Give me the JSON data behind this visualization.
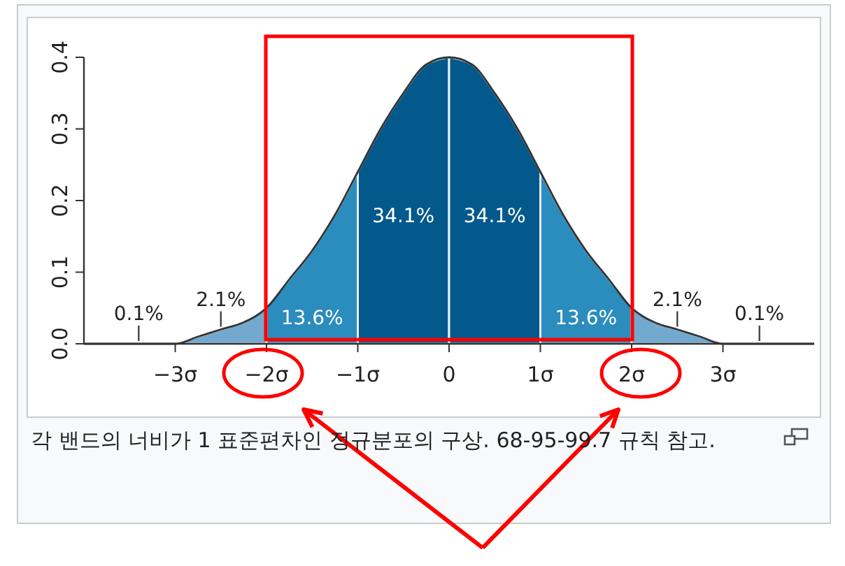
{
  "chart_data": {
    "type": "area",
    "xlim": [
      -4,
      4
    ],
    "ylim": [
      0,
      0.4
    ],
    "xticks": [
      {
        "value": -3,
        "label": "−3σ"
      },
      {
        "value": -2,
        "label": "−2σ"
      },
      {
        "value": -1,
        "label": "−1σ"
      },
      {
        "value": 0,
        "label": "0"
      },
      {
        "value": 1,
        "label": "1σ"
      },
      {
        "value": 2,
        "label": "2σ"
      },
      {
        "value": 3,
        "label": "3σ"
      }
    ],
    "yticks": [
      {
        "value": 0,
        "label": "0.0"
      },
      0.1,
      0.2,
      0.3,
      0.4
    ],
    "series": [
      {
        "color": "#74a9cf",
        "x": [
          -3,
          -2.75,
          -2.5,
          -2.25,
          -2
        ],
        "values": [
          0,
          0.01,
          0.02,
          0.03,
          0.05
        ]
      },
      {
        "color": "#2b8cbe",
        "x": [
          -2,
          -1.75,
          -1.5,
          -1.25,
          -1
        ],
        "values": [
          0.05,
          0.09,
          0.13,
          0.18,
          0.24
        ]
      },
      {
        "color": "#04598c",
        "x": [
          -1,
          -0.75,
          -0.5,
          -0.25,
          0
        ],
        "values": [
          0.24,
          0.3,
          0.35,
          0.39,
          0.4
        ]
      },
      {
        "color": "#04598c",
        "x": [
          0,
          0.25,
          0.5,
          0.75,
          1
        ],
        "values": [
          0.4,
          0.39,
          0.35,
          0.3,
          0.24
        ]
      },
      {
        "color": "#2b8cbe",
        "x": [
          1,
          1.25,
          1.5,
          1.75,
          2
        ],
        "values": [
          0.24,
          0.18,
          0.13,
          0.09,
          0.05
        ]
      },
      {
        "color": "#74a9cf",
        "x": [
          2,
          2.25,
          2.5,
          2.75,
          3
        ],
        "values": [
          0.05,
          0.03,
          0.02,
          0.01,
          0
        ]
      },
      {
        "type": "line",
        "color": "#333333",
        "x": [
          -4,
          -3.75,
          -3.5,
          -3.25,
          -3,
          -2.75,
          -2.5,
          -2.25,
          -2,
          -1.75,
          -1.5,
          -1.25,
          -1,
          -0.75,
          -0.5,
          -0.25,
          0,
          0.25,
          0.5,
          0.75,
          1,
          1.25,
          1.5,
          1.75,
          2,
          2.25,
          2.5,
          2.75,
          3,
          3.25,
          3.5,
          3.75,
          4
        ],
        "values": [
          0,
          0,
          0,
          0,
          0,
          0.01,
          0.02,
          0.03,
          0.05,
          0.09,
          0.13,
          0.18,
          0.24,
          0.3,
          0.35,
          0.39,
          0.4,
          0.39,
          0.35,
          0.3,
          0.24,
          0.18,
          0.13,
          0.09,
          0.05,
          0.03,
          0.02,
          0.01,
          0,
          0,
          0,
          0,
          0
        ]
      }
    ],
    "annotations": [
      {
        "text": "0.1%",
        "x": -3.4,
        "y": 0
      },
      {
        "text": "2.1%",
        "x": -2.5,
        "y": 0.02
      },
      "13.6%",
      "34.1%",
      "34.1%",
      "13.6%",
      {
        "text": "2.1%",
        "x": 2.5,
        "y": 0.02
      },
      {
        "text": "0.1%",
        "x": 3.4,
        "y": 0
      },
      "각 밴드의 너비가 1 표준편차인 정규분포의 구상. 68-95-99.7 규칙 참고."
    ]
  }
}
